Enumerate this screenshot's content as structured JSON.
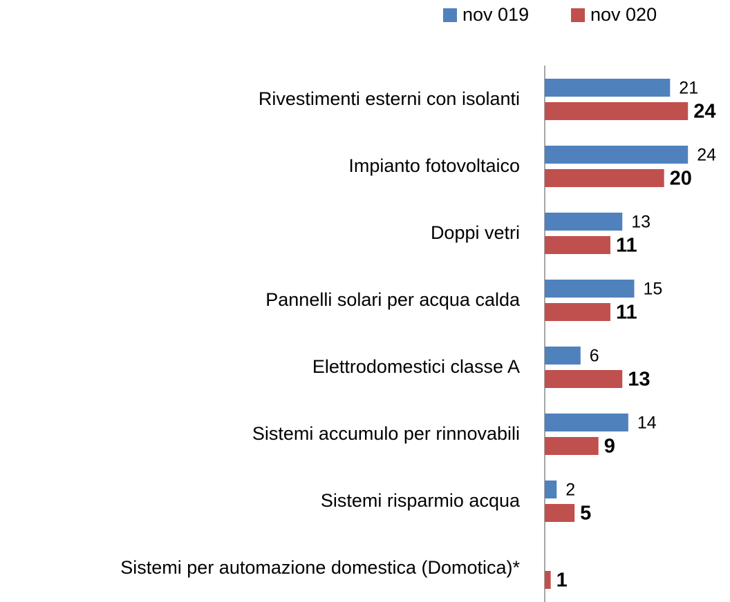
{
  "chart_data": {
    "type": "hbar",
    "categories": [
      "Rivestimenti esterni con isolanti",
      "Impianto fotovoltaico",
      "Doppi vetri",
      "Pannelli solari per acqua calda",
      "Elettrodomestici classe A",
      "Sistemi accumulo per rinnovabili",
      "Sistemi risparmio acqua",
      "Sistemi per automazione domestica (Domotica)*"
    ],
    "series": [
      {
        "name": "nov 019",
        "color": "#4f81bd",
        "values": [
          21,
          24,
          13,
          15,
          6,
          14,
          2,
          null
        ]
      },
      {
        "name": "nov 020",
        "color": "#c0504d",
        "values": [
          24,
          20,
          11,
          11,
          13,
          9,
          5,
          1
        ]
      }
    ],
    "xlim": [
      0,
      30
    ],
    "legend": "top-right"
  }
}
